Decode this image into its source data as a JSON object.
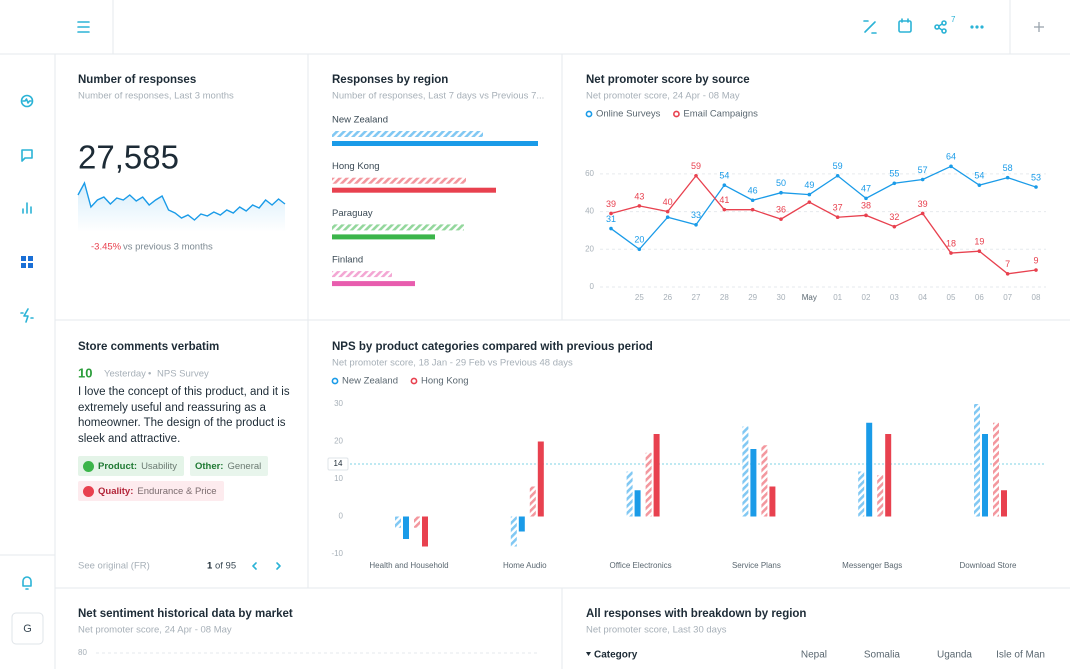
{
  "topbar": {
    "share_count": 7
  },
  "sidebar": {
    "avatar": "G"
  },
  "chart_data": [
    {
      "type": "sparkline",
      "title": "Number of responses",
      "subtitle": "Number of responses, Last 3 months",
      "total": "27,585",
      "change": "-3.45%",
      "change_note": "vs previous 3 months",
      "color": "#1a9be8",
      "values": [
        35,
        47,
        23,
        30,
        33,
        26,
        32,
        30,
        35,
        29,
        33,
        25,
        30,
        34,
        20,
        17,
        12,
        15,
        10,
        16,
        14,
        18,
        15,
        20,
        17,
        23,
        19,
        25,
        22,
        30,
        25,
        31,
        26
      ]
    },
    {
      "type": "hbar",
      "title": "Responses by region",
      "subtitle": "Number of responses, Last 7 days vs Previous 7...",
      "categories": [
        "New Zealand",
        "Hong Kong",
        "Paraguay",
        "Finland"
      ],
      "values": [
        206,
        164,
        103,
        83
      ],
      "previous_values": [
        151,
        134,
        132,
        60
      ],
      "colors": [
        "#1a9be8",
        "#e8414f",
        "#3bb54a",
        "#e85dae"
      ]
    },
    {
      "type": "line",
      "title": "Net promoter score by source",
      "subtitle": "Net promoter score, 24 Apr - 08 May",
      "categories": [
        null,
        "25",
        "26",
        "27",
        "28",
        "29",
        "30",
        "May",
        "01",
        "02",
        "03",
        "04",
        "05",
        "06",
        "07",
        "08"
      ],
      "ylim": [
        0,
        70
      ],
      "yticks": [
        0,
        20,
        40,
        60
      ],
      "grid": true,
      "series": [
        {
          "name": "Online Surveys",
          "color": "#1a9be8",
          "values": [
            31,
            20,
            37,
            33,
            54,
            46,
            50,
            49,
            59,
            47,
            55,
            57,
            64,
            54,
            58,
            53
          ],
          "value_labels": [
            "31",
            "20",
            null,
            "33",
            "54",
            "46",
            "50",
            "49",
            "59",
            "47",
            "55",
            "57",
            "64",
            "54",
            "58",
            "53"
          ]
        },
        {
          "name": "Email Campaigns",
          "color": "#e8414f",
          "values": [
            39,
            43,
            40,
            59,
            41,
            41,
            36,
            45,
            37,
            38,
            32,
            39,
            18,
            19,
            7,
            9
          ],
          "value_labels": [
            "39",
            "43",
            "40",
            "59",
            "41",
            null,
            "36",
            null,
            "37",
            "38",
            "32",
            "39",
            "18",
            "19",
            "7",
            "9"
          ]
        }
      ]
    },
    {
      "type": "grouped_bar",
      "title": "NPS by product categories compared with previous period",
      "subtitle": "Net promoter score, 18 Jan - 29 Feb vs Previous 48 days",
      "categories": [
        "Health and Household",
        "Home Audio",
        "Office Electronics",
        "Service Plans",
        "Messenger Bags",
        "Download Store"
      ],
      "ylim": [
        -10,
        30
      ],
      "yticks": [
        -10,
        0,
        10,
        20,
        30
      ],
      "grid": false,
      "reference_line": 14,
      "series": [
        {
          "name": "New Zealand",
          "color": "#1a9be8",
          "values": [
            -6,
            -4,
            7,
            18,
            25,
            22
          ],
          "previous_values": [
            -3,
            -8,
            12,
            24,
            12,
            30
          ]
        },
        {
          "name": "Hong Kong",
          "color": "#e8414f",
          "values": [
            -8,
            20,
            22,
            8,
            22,
            7
          ],
          "previous_values": [
            -3,
            8,
            17,
            19,
            11,
            25
          ]
        }
      ]
    },
    {
      "type": "line",
      "title": "Net sentiment historical data by market",
      "subtitle": "Net promoter score, 24 Apr - 08 May",
      "yticks": [
        80
      ],
      "grid": true
    }
  ],
  "comment": {
    "title": "Store comments verbatim",
    "score": 10,
    "date": "Yesterday",
    "separator": "•",
    "source": "NPS Survey",
    "text": "I love the concept of this product, and it is extremely useful and reassuring as a homeowner. The design of the product is sleek and attractive.",
    "tags": [
      {
        "key": "Product:",
        "value": "Usability"
      },
      {
        "key": "Other:",
        "value": "General"
      },
      {
        "key": "Quality:",
        "value": "Endurance & Price"
      }
    ],
    "link": "See original (FR)",
    "page": 1,
    "pages": "of 95"
  },
  "table": {
    "title": "All responses with breakdown by region",
    "subtitle": "Net promoter score, Last 30 days",
    "columns": [
      "Category",
      "Nepal",
      "Somalia",
      "Uganda",
      "Isle of Man"
    ]
  }
}
